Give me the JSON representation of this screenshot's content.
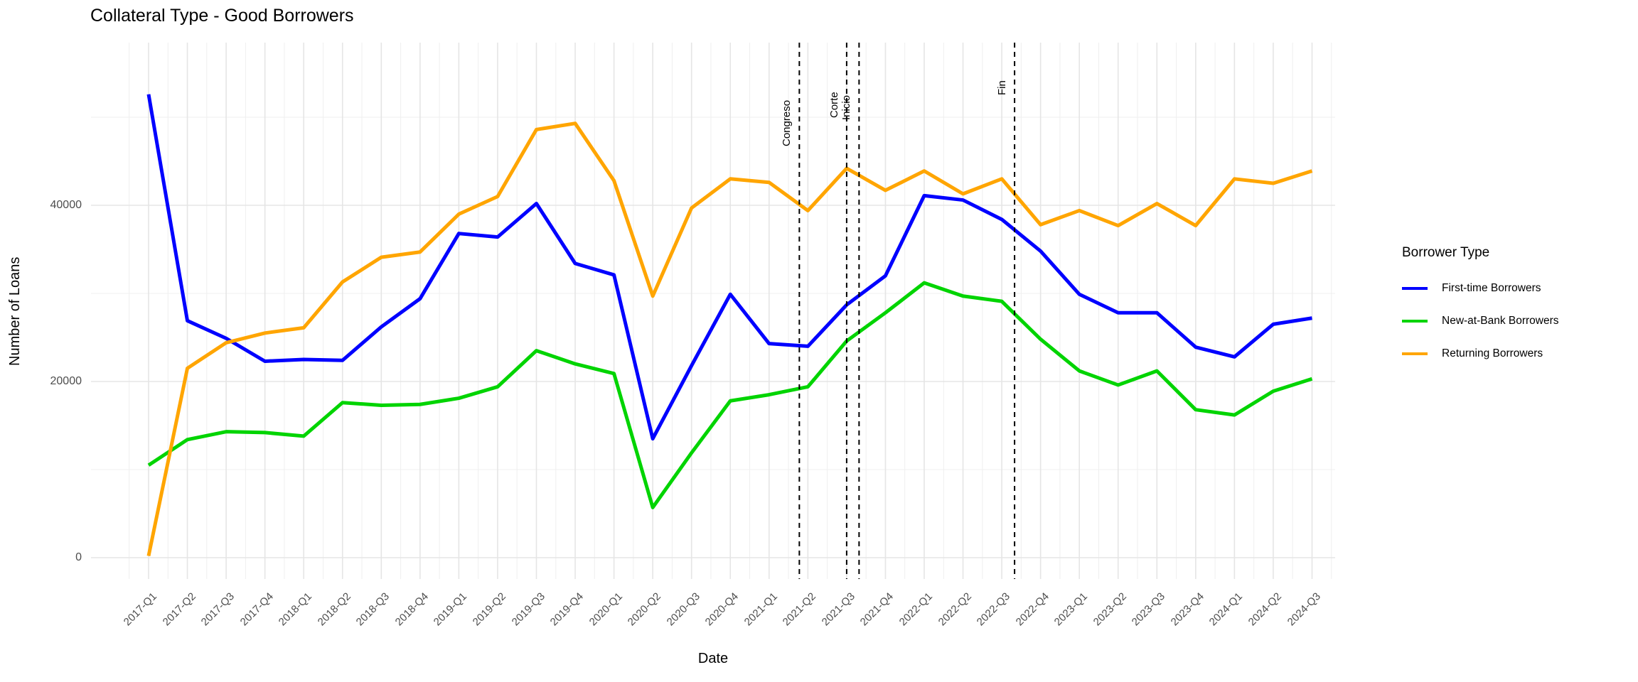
{
  "title": "Collateral Type - Good Borrowers",
  "legend": {
    "title": "Borrower Type"
  },
  "chart_data": {
    "type": "line",
    "title": "Collateral Type - Good Borrowers",
    "xlabel": "Date",
    "ylabel": "Number of Loans",
    "legend_title": "Borrower Type",
    "legend_position": "right",
    "grid": "on",
    "ylim": [
      0,
      58000
    ],
    "y_ticks": [
      {
        "label": "0",
        "value": 0
      },
      {
        "label": "20000",
        "value": 20000
      },
      {
        "label": "40000",
        "value": 40000
      }
    ],
    "y_minor": [
      10000,
      30000,
      50000
    ],
    "categories": [
      "2017-Q1",
      "2017-Q2",
      "2017-Q3",
      "2017-Q4",
      "2018-Q1",
      "2018-Q2",
      "2018-Q3",
      "2018-Q4",
      "2019-Q1",
      "2019-Q2",
      "2019-Q3",
      "2019-Q4",
      "2020-Q1",
      "2020-Q2",
      "2020-Q3",
      "2020-Q4",
      "2021-Q1",
      "2021-Q2",
      "2021-Q3",
      "2021-Q4",
      "2022-Q1",
      "2022-Q2",
      "2022-Q3",
      "2022-Q4",
      "2023-Q1",
      "2023-Q2",
      "2023-Q3",
      "2023-Q4",
      "2024-Q1",
      "2024-Q2",
      "2024-Q3"
    ],
    "series": [
      {
        "name": "First-time Borrowers",
        "color": "#0000FF",
        "values": [
          52600,
          26900,
          24900,
          22300,
          22500,
          22400,
          26200,
          29400,
          36800,
          36400,
          40200,
          33400,
          32100,
          13500,
          21800,
          29900,
          24300,
          24000,
          28700,
          32000,
          41100,
          40600,
          38400,
          34800,
          29900,
          27800,
          27800,
          23900,
          22800,
          26500,
          27200
        ]
      },
      {
        "name": "New-at-Bank Borrowers",
        "color": "#00D400",
        "values": [
          10500,
          13400,
          14300,
          14200,
          13800,
          17600,
          17300,
          17400,
          18100,
          19400,
          23500,
          22000,
          20900,
          5700,
          11900,
          17800,
          18500,
          19400,
          24600,
          27800,
          31200,
          29700,
          29100,
          24800,
          21200,
          19600,
          21200,
          16800,
          16200,
          18900,
          20300
        ]
      },
      {
        "name": "Returning Borrowers",
        "color": "#FFA500",
        "values": [
          200,
          21500,
          24400,
          25500,
          26100,
          31300,
          34100,
          34700,
          39000,
          41000,
          48600,
          49300,
          42800,
          29700,
          39700,
          43000,
          42600,
          39400,
          44200,
          41700,
          43900,
          41300,
          43000,
          37800,
          39400,
          37700,
          40200,
          37700,
          43000,
          42500,
          43900
        ]
      }
    ],
    "event_lines": [
      {
        "label": "Congreso",
        "x_index": 16.78,
        "label_bottom": 206
      },
      {
        "label": "Corte",
        "x_index": 18.0,
        "label_bottom": 166
      },
      {
        "label": "Inicio",
        "x_index": 18.32,
        "label_bottom": 169
      },
      {
        "label": "Fin",
        "x_index": 22.33,
        "label_bottom": 134
      }
    ],
    "colors": {
      "grid_major": "#e5e5e5",
      "grid_minor": "#efefef",
      "event_line": "#000000",
      "tick_text": "#4d4d4d"
    }
  }
}
